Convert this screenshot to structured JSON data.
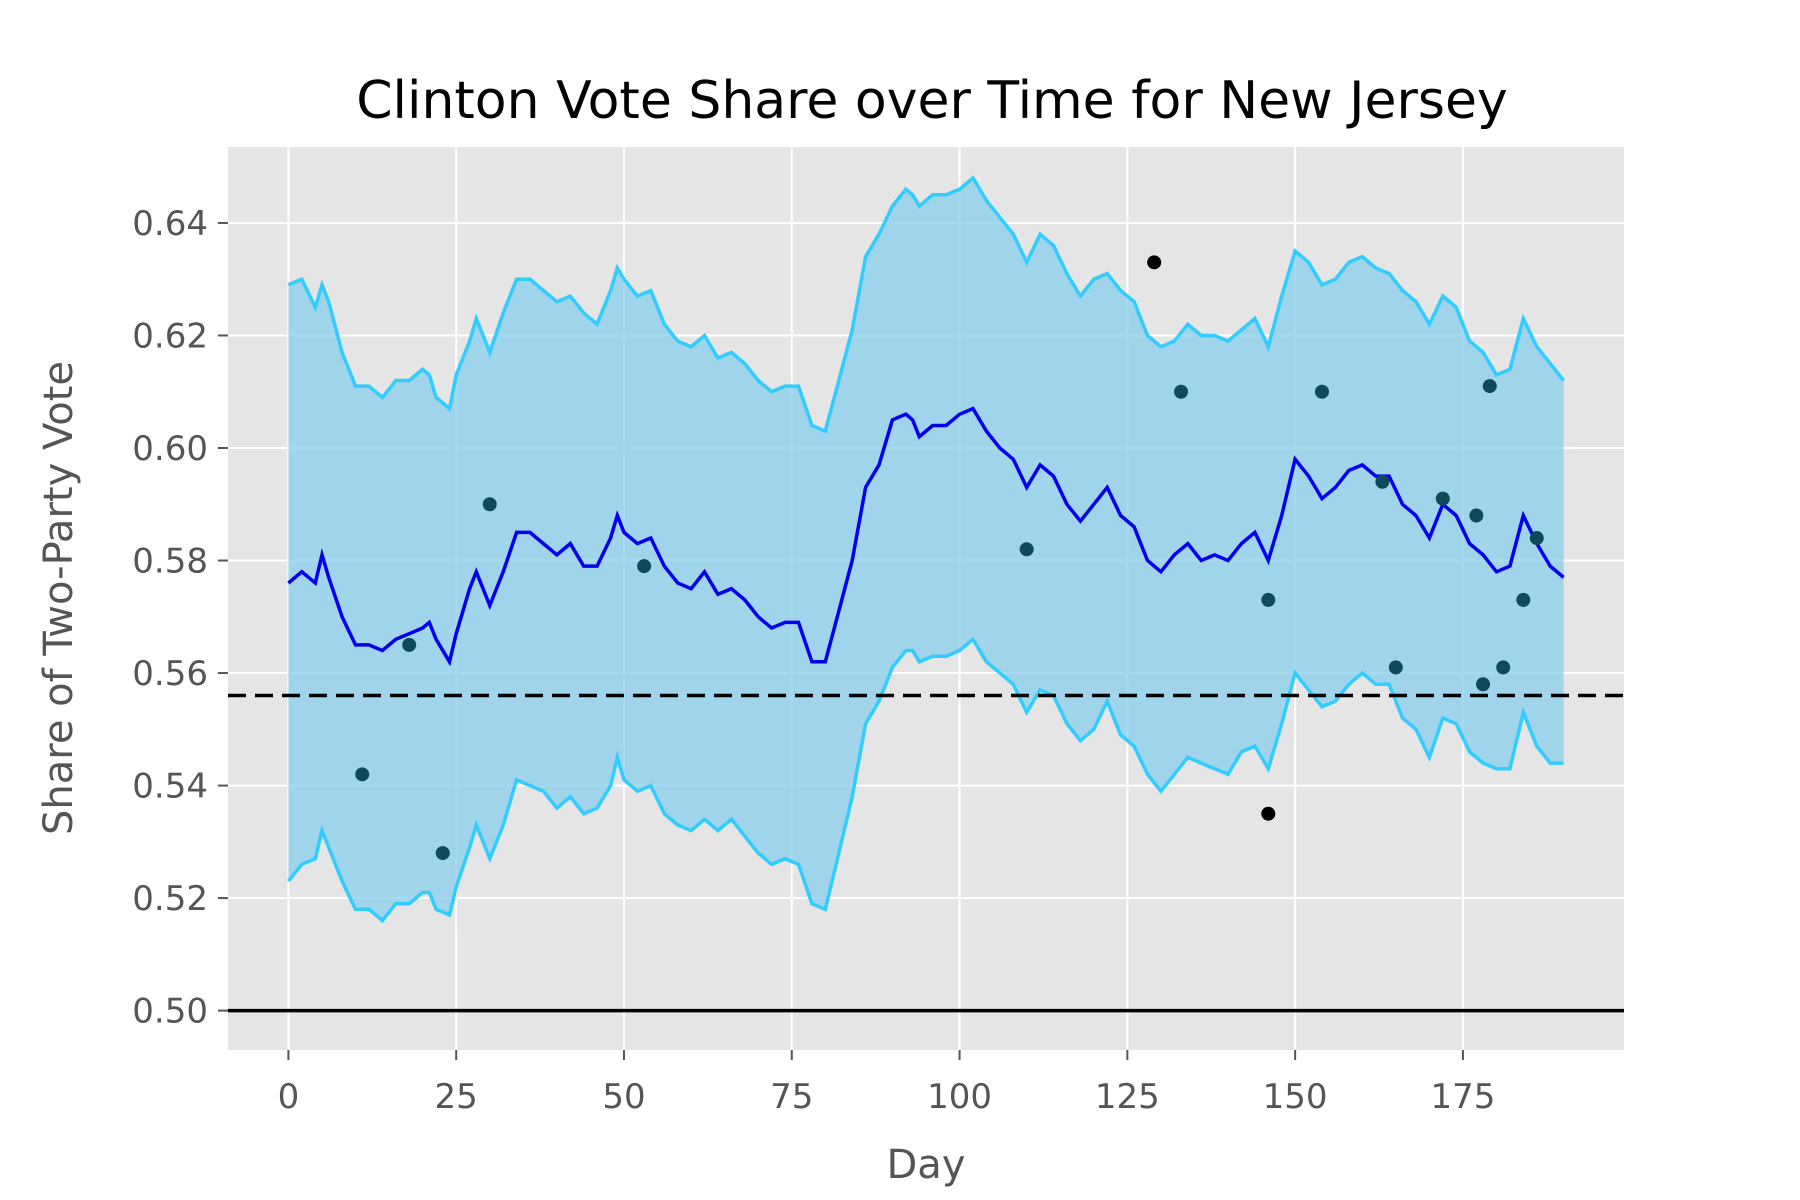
{
  "chart_data": {
    "type": "line",
    "title": "Clinton Vote Share over Time for New Jersey",
    "xlabel": "Day",
    "ylabel": "Share of Two-Party Vote",
    "xlim": [
      -9,
      199
    ],
    "ylim": [
      0.493,
      0.6535
    ],
    "xticks": [
      0,
      25,
      50,
      75,
      100,
      125,
      150,
      175
    ],
    "yticks": [
      0.5,
      0.52,
      0.54,
      0.56,
      0.58,
      0.6,
      0.62,
      0.64
    ],
    "grid": true,
    "colors": {
      "background": "#e5e5e5",
      "grid": "#ffffff",
      "band_fill": "#87ceeb",
      "band_edge": "#33ccff",
      "mean_line": "#0000ee",
      "reference_dashed": "#000000",
      "reference_solid": "#000000",
      "poll_dot": "#0e4a5a"
    },
    "mean": {
      "x": [
        0,
        2,
        4,
        5,
        6,
        8,
        10,
        12,
        14,
        16,
        18,
        20,
        21,
        22,
        24,
        25,
        27,
        28,
        30,
        32,
        34,
        36,
        38,
        40,
        42,
        44,
        46,
        48,
        49,
        50,
        52,
        54,
        56,
        58,
        60,
        62,
        64,
        66,
        68,
        70,
        72,
        74,
        76,
        78,
        80,
        82,
        84,
        86,
        88,
        90,
        92,
        93,
        94,
        96,
        98,
        100,
        102,
        104,
        106,
        108,
        110,
        112,
        114,
        116,
        118,
        120,
        122,
        124,
        126,
        128,
        130,
        132,
        134,
        136,
        138,
        140,
        142,
        144,
        146,
        148,
        150,
        152,
        154,
        156,
        158,
        160,
        162,
        164,
        166,
        168,
        170,
        172,
        174,
        176,
        178,
        180,
        182,
        184,
        186,
        188,
        190
      ],
      "y": [
        0.576,
        0.578,
        0.576,
        0.581,
        0.577,
        0.57,
        0.565,
        0.565,
        0.564,
        0.566,
        0.567,
        0.568,
        0.569,
        0.566,
        0.562,
        0.567,
        0.575,
        0.578,
        0.572,
        0.578,
        0.585,
        0.585,
        0.583,
        0.581,
        0.583,
        0.579,
        0.579,
        0.584,
        0.588,
        0.585,
        0.583,
        0.584,
        0.579,
        0.576,
        0.575,
        0.578,
        0.574,
        0.575,
        0.573,
        0.57,
        0.568,
        0.569,
        0.569,
        0.562,
        0.562,
        0.571,
        0.58,
        0.593,
        0.597,
        0.605,
        0.606,
        0.605,
        0.602,
        0.604,
        0.604,
        0.606,
        0.607,
        0.603,
        0.6,
        0.598,
        0.593,
        0.597,
        0.595,
        0.59,
        0.587,
        0.59,
        0.593,
        0.588,
        0.586,
        0.58,
        0.578,
        0.581,
        0.583,
        0.58,
        0.581,
        0.58,
        0.583,
        0.585,
        0.58,
        0.588,
        0.598,
        0.595,
        0.591,
        0.593,
        0.596,
        0.597,
        0.595,
        0.595,
        0.59,
        0.588,
        0.584,
        0.59,
        0.588,
        0.583,
        0.581,
        0.578,
        0.579,
        0.588,
        0.583,
        0.579,
        0.577
      ]
    },
    "upper": {
      "x": [
        0,
        2,
        4,
        5,
        6,
        8,
        10,
        12,
        14,
        16,
        18,
        20,
        21,
        22,
        24,
        25,
        27,
        28,
        30,
        32,
        34,
        36,
        38,
        40,
        42,
        44,
        46,
        48,
        49,
        50,
        52,
        54,
        56,
        58,
        60,
        62,
        64,
        66,
        68,
        70,
        72,
        74,
        76,
        78,
        80,
        82,
        84,
        86,
        88,
        90,
        92,
        93,
        94,
        96,
        98,
        100,
        102,
        104,
        106,
        108,
        110,
        112,
        114,
        116,
        118,
        120,
        122,
        124,
        126,
        128,
        130,
        132,
        134,
        136,
        138,
        140,
        142,
        144,
        146,
        148,
        150,
        152,
        154,
        156,
        158,
        160,
        162,
        164,
        166,
        168,
        170,
        172,
        174,
        176,
        178,
        180,
        182,
        184,
        186,
        188,
        190
      ],
      "y": [
        0.629,
        0.63,
        0.625,
        0.629,
        0.626,
        0.617,
        0.611,
        0.611,
        0.609,
        0.612,
        0.612,
        0.614,
        0.613,
        0.609,
        0.607,
        0.613,
        0.619,
        0.623,
        0.617,
        0.624,
        0.63,
        0.63,
        0.628,
        0.626,
        0.627,
        0.624,
        0.622,
        0.628,
        0.632,
        0.63,
        0.627,
        0.628,
        0.622,
        0.619,
        0.618,
        0.62,
        0.616,
        0.617,
        0.615,
        0.612,
        0.61,
        0.611,
        0.611,
        0.604,
        0.603,
        0.612,
        0.621,
        0.634,
        0.638,
        0.643,
        0.646,
        0.645,
        0.643,
        0.645,
        0.645,
        0.646,
        0.648,
        0.644,
        0.641,
        0.638,
        0.633,
        0.638,
        0.636,
        0.631,
        0.627,
        0.63,
        0.631,
        0.628,
        0.626,
        0.62,
        0.618,
        0.619,
        0.622,
        0.62,
        0.62,
        0.619,
        0.621,
        0.623,
        0.618,
        0.627,
        0.635,
        0.633,
        0.629,
        0.63,
        0.633,
        0.634,
        0.632,
        0.631,
        0.628,
        0.626,
        0.622,
        0.627,
        0.625,
        0.619,
        0.617,
        0.613,
        0.614,
        0.623,
        0.618,
        0.615,
        0.612
      ]
    },
    "lower": {
      "x": [
        0,
        2,
        4,
        5,
        6,
        8,
        10,
        12,
        14,
        16,
        18,
        20,
        21,
        22,
        24,
        25,
        27,
        28,
        30,
        32,
        34,
        36,
        38,
        40,
        42,
        44,
        46,
        48,
        49,
        50,
        52,
        54,
        56,
        58,
        60,
        62,
        64,
        66,
        68,
        70,
        72,
        74,
        76,
        78,
        80,
        82,
        84,
        86,
        88,
        90,
        92,
        93,
        94,
        96,
        98,
        100,
        102,
        104,
        106,
        108,
        110,
        112,
        114,
        116,
        118,
        120,
        122,
        124,
        126,
        128,
        130,
        132,
        134,
        136,
        138,
        140,
        142,
        144,
        146,
        148,
        150,
        152,
        154,
        156,
        158,
        160,
        162,
        164,
        166,
        168,
        170,
        172,
        174,
        176,
        178,
        180,
        182,
        184,
        186,
        188,
        190
      ],
      "y": [
        0.523,
        0.526,
        0.527,
        0.532,
        0.529,
        0.523,
        0.518,
        0.518,
        0.516,
        0.519,
        0.519,
        0.521,
        0.521,
        0.518,
        0.517,
        0.522,
        0.529,
        0.533,
        0.527,
        0.533,
        0.541,
        0.54,
        0.539,
        0.536,
        0.538,
        0.535,
        0.536,
        0.54,
        0.545,
        0.541,
        0.539,
        0.54,
        0.535,
        0.533,
        0.532,
        0.534,
        0.532,
        0.534,
        0.531,
        0.528,
        0.526,
        0.527,
        0.526,
        0.519,
        0.518,
        0.528,
        0.538,
        0.551,
        0.555,
        0.561,
        0.564,
        0.564,
        0.562,
        0.563,
        0.563,
        0.564,
        0.566,
        0.562,
        0.56,
        0.558,
        0.553,
        0.557,
        0.556,
        0.551,
        0.548,
        0.55,
        0.555,
        0.549,
        0.547,
        0.542,
        0.539,
        0.542,
        0.545,
        0.544,
        0.543,
        0.542,
        0.546,
        0.547,
        0.543,
        0.551,
        0.56,
        0.557,
        0.554,
        0.555,
        0.558,
        0.56,
        0.558,
        0.558,
        0.552,
        0.55,
        0.545,
        0.552,
        0.551,
        0.546,
        0.544,
        0.543,
        0.543,
        0.553,
        0.547,
        0.544,
        0.544
      ]
    },
    "polls": {
      "x": [
        11,
        18,
        23,
        30,
        53,
        110,
        129,
        133,
        146,
        146,
        154,
        163,
        165,
        172,
        177,
        178,
        179,
        181,
        184,
        186
      ],
      "y": [
        0.542,
        0.565,
        0.528,
        0.59,
        0.579,
        0.582,
        0.633,
        0.61,
        0.573,
        0.535,
        0.61,
        0.594,
        0.561,
        0.591,
        0.588,
        0.558,
        0.611,
        0.561,
        0.573,
        0.584
      ],
      "colors": [
        "#0e4a5a",
        "#0e4a5a",
        "#0e4a5a",
        "#0e4a5a",
        "#0e4a5a",
        "#0e4a5a",
        "#000000",
        "#0e4a5a",
        "#0e4a5a",
        "#000000",
        "#0e4a5a",
        "#0e4a5a",
        "#0e4a5a",
        "#0e4a5a",
        "#0e4a5a",
        "#0e4a5a",
        "#0e4a5a",
        "#0e4a5a",
        "#0e4a5a",
        "#0e4a5a"
      ]
    },
    "reference_lines": {
      "dashed_y": 0.556,
      "solid_y": 0.5
    }
  }
}
